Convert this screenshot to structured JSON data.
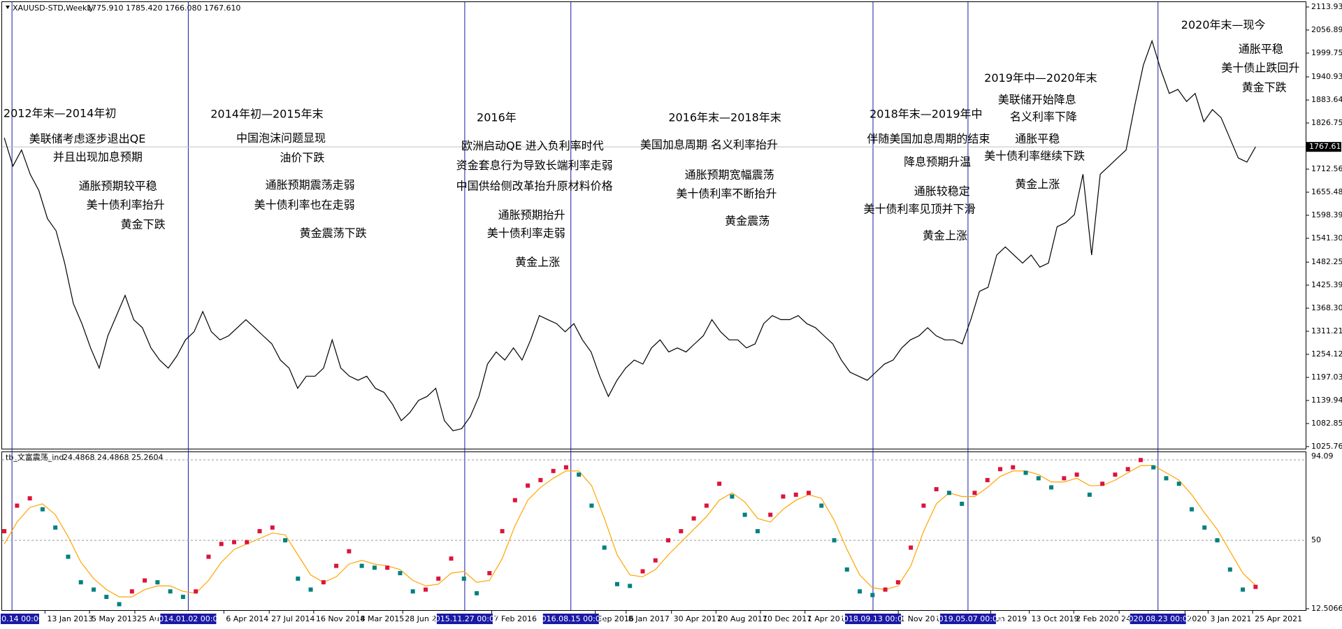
{
  "chart_data": [
    {
      "type": "line",
      "title": "XAUUSD-STD,Weekly",
      "subtitle": "1775.910 1785.420 1766.080 1767.610",
      "ylim": [
        1025.76,
        2113.93
      ],
      "yticks": [
        {
          "value": 1025.76,
          "label": "1025.760"
        },
        {
          "value": 1082.85,
          "label": "1082.850"
        },
        {
          "value": 1139.94,
          "label": "1139.940"
        },
        {
          "value": 1197.03,
          "label": "1197.030"
        },
        {
          "value": 1254.12,
          "label": "1254.120"
        },
        {
          "value": 1311.21,
          "label": "1311.210"
        },
        {
          "value": 1368.3,
          "label": "1368.300"
        },
        {
          "value": 1425.39,
          "label": "1425.390"
        },
        {
          "value": 1482.25,
          "label": "1482.250"
        },
        {
          "value": 1541.3,
          "label": "1541.300"
        },
        {
          "value": 1598.39,
          "label": "1598.390"
        },
        {
          "value": 1655.48,
          "label": "1655.480"
        },
        {
          "value": 1712.56,
          "label": "1712.560"
        },
        {
          "value": 1826.75,
          "label": "1826.750"
        },
        {
          "value": 1883.64,
          "label": "1883.640"
        },
        {
          "value": 1940.93,
          "label": "1940.930"
        },
        {
          "value": 1999.75,
          "label": "1999.750"
        },
        {
          "value": 2056.89,
          "label": "2056.890"
        },
        {
          "value": 2113.93,
          "label": "2113.930"
        }
      ],
      "last_price": {
        "value": 1767.61,
        "label": "1767.610"
      },
      "series": [
        {
          "color": "#000000",
          "values": [
            1790,
            1720,
            1760,
            1700,
            1660,
            1590,
            1560,
            1480,
            1380,
            1330,
            1270,
            1220,
            1300,
            1350,
            1400,
            1340,
            1320,
            1270,
            1240,
            1220,
            1250,
            1290,
            1310,
            1360,
            1310,
            1290,
            1300,
            1320,
            1340,
            1320,
            1300,
            1280,
            1240,
            1220,
            1170,
            1200,
            1200,
            1220,
            1290,
            1220,
            1200,
            1190,
            1200,
            1170,
            1160,
            1130,
            1090,
            1110,
            1140,
            1150,
            1170,
            1090,
            1065,
            1070,
            1100,
            1150,
            1230,
            1260,
            1240,
            1270,
            1240,
            1290,
            1350,
            1340,
            1330,
            1310,
            1330,
            1290,
            1260,
            1200,
            1150,
            1190,
            1220,
            1240,
            1230,
            1270,
            1290,
            1260,
            1270,
            1260,
            1280,
            1300,
            1340,
            1310,
            1290,
            1290,
            1270,
            1280,
            1330,
            1350,
            1340,
            1340,
            1350,
            1330,
            1320,
            1300,
            1280,
            1240,
            1210,
            1200,
            1190,
            1210,
            1230,
            1240,
            1270,
            1290,
            1300,
            1320,
            1300,
            1290,
            1290,
            1280,
            1340,
            1410,
            1420,
            1500,
            1520,
            1500,
            1480,
            1500,
            1470,
            1480,
            1570,
            1580,
            1600,
            1700,
            1500,
            1700,
            1720,
            1740,
            1760,
            1870,
            1970,
            2030,
            1960,
            1900,
            1910,
            1880,
            1900,
            1830,
            1860,
            1840,
            1790,
            1740,
            1730,
            1767.61
          ]
        }
      ],
      "annotations": [
        "2012年末—2014年初",
        "美联储考虑逐步退出QE",
        "并且出现加息预期",
        "通胀预期较平稳",
        "美十债利率抬升",
        "黄金下跌",
        "2014年初—2015年末",
        "中国泡沫问题显现",
        "油价下跌",
        "通胀预期震荡走弱",
        "美十债利率也在走弱",
        "黄金震荡下跌",
        "2016年",
        "欧洲启动QE  进入负利率时代",
        "资金套息行为导致长端利率走弱",
        "中国供给侧改革抬升原材料价格",
        "通胀预期抬升",
        "美十债利率走弱",
        "黄金上涨",
        "2016年末—2018年末",
        "美国加息周期  名义利率抬升",
        "通胀预期宽幅震荡",
        "美十债利率不断抬升",
        "黄金震荡",
        "2018年末—2019年中",
        "伴随美国加息周期的结束",
        "降息预期升温",
        "通胀较稳定",
        "美十债利率见顶并下滑",
        "黄金上涨",
        "2019年中—2020年末",
        "美联储开始降息",
        "名义利率下降",
        "通胀平稳",
        "美十债利率继续下跌",
        "黄金上涨",
        "2020年末—现今",
        "通胀平稳",
        "美十债止跌回升",
        "黄金下跌"
      ]
    },
    {
      "type": "oscillator",
      "title": "tb_文富震荡_ind",
      "subtitle": "24.4868 24.4868 25.2604",
      "ylim": [
        12.5066,
        94.09
      ],
      "yticks": [
        94.09,
        50,
        12.5066
      ],
      "up_color": "#dc143c",
      "down_color": "#008080",
      "series": [
        {
          "values": [
            55,
            69,
            73,
            67,
            57,
            41,
            27,
            23,
            19,
            15,
            22,
            28,
            27,
            22,
            19,
            22,
            41,
            48,
            49,
            49,
            55,
            57,
            50,
            29,
            23,
            27,
            36,
            44,
            36,
            35,
            35,
            32,
            22,
            23,
            29,
            40,
            29,
            21,
            32,
            55,
            72,
            80,
            83,
            88,
            90,
            86,
            69,
            46,
            26,
            25,
            33,
            39,
            50,
            55,
            62,
            69,
            81,
            74,
            64,
            55,
            64,
            74,
            75,
            76,
            69,
            50,
            34,
            22,
            20,
            23,
            27,
            46,
            69,
            78,
            76,
            70,
            76,
            83,
            89,
            90,
            87,
            84,
            79,
            84,
            86,
            75,
            81,
            86,
            89,
            94,
            90,
            84,
            81,
            67,
            57,
            50,
            34,
            23,
            24.4868
          ]
        },
        {
          "color": "#ffa500",
          "values": [
            48,
            60,
            68,
            70,
            64,
            52,
            38,
            29,
            23,
            19,
            19,
            23,
            25,
            25,
            22,
            21,
            28,
            38,
            45,
            48,
            51,
            54,
            53,
            42,
            31,
            27,
            30,
            37,
            39,
            37,
            36,
            34,
            28,
            25,
            26,
            32,
            33,
            27,
            28,
            40,
            58,
            72,
            79,
            84,
            88,
            88,
            80,
            62,
            42,
            31,
            30,
            34,
            42,
            49,
            56,
            63,
            72,
            76,
            71,
            62,
            60,
            67,
            72,
            75,
            73,
            61,
            45,
            31,
            24,
            23,
            25,
            36,
            55,
            70,
            76,
            74,
            74,
            79,
            85,
            88,
            88,
            86,
            82,
            82,
            84,
            80,
            80,
            83,
            87,
            91,
            91,
            87,
            83,
            75,
            65,
            56,
            44,
            32,
            25.2604
          ]
        }
      ]
    }
  ],
  "time_axis": {
    "labels": [
      "13 Jan 2013",
      "5 May 2013",
      "25 Aug",
      "6 Apr 2014",
      "27 Jul 2014",
      "16 Nov 2014",
      "8 Mar 2015",
      "28 Jun 201",
      "7 Feb 2016",
      "Sep 2016",
      "8 Jan 2017",
      "30 Apr 2017",
      "20 Aug 2017",
      "10 Dec 2017",
      "1 Apr 2018",
      "1 Nov 2018",
      "Jun 2019",
      "13 Oct 2019",
      "2 Feb 2020",
      "24",
      "2020",
      "3 Jan 2021",
      "25 Apr 2021"
    ],
    "markers": [
      "10.14 00:00",
      "2014.01.02 00:00",
      "2015.11.27 00:00",
      "2016.08.15 00:00",
      "2018.09.13 00:00",
      "2019.05.07 00:00",
      "2020.08.23 00:00"
    ]
  }
}
